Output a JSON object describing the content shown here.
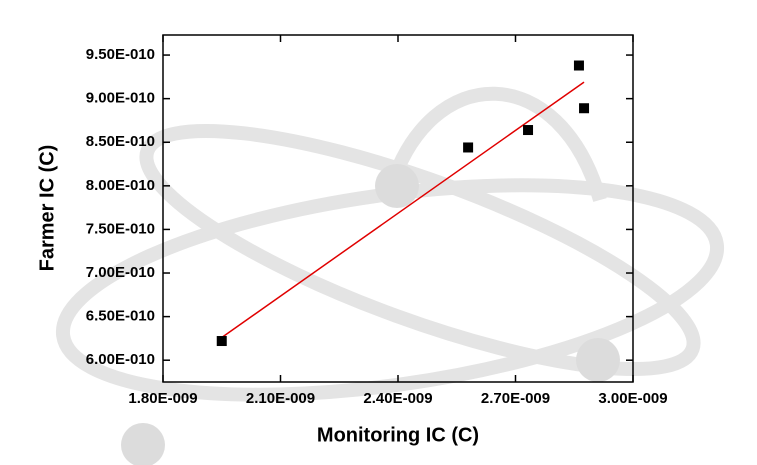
{
  "chart_data": {
    "type": "scatter",
    "x_label": "Monitoring IC (C)",
    "y_label": "Farmer IC (C)",
    "x": [
      1.95e-09,
      2.579e-09,
      2.732e-09,
      2.862e-09,
      2.875e-09
    ],
    "values": [
      6.22e-10,
      8.44e-10,
      8.64e-10,
      9.38e-10,
      8.89e-10
    ],
    "color": "#000000",
    "fit": {
      "x": [
        1.95e-09,
        2.875e-09
      ],
      "y": [
        6.26e-10,
        9.19e-10
      ],
      "color": "#e00000"
    },
    "xlim": [
      1.8e-09,
      3e-09
    ],
    "ylim": [
      5.75e-10,
      9.73e-10
    ],
    "xticks": [
      {
        "value": 1.8e-09,
        "label": "1.80E-009"
      },
      {
        "value": 2.1e-09,
        "label": "2.10E-009"
      },
      {
        "value": 2.4e-09,
        "label": "2.40E-009"
      },
      {
        "value": 2.7e-09,
        "label": "2.70E-009"
      },
      {
        "value": 3e-09,
        "label": "3.00E-009"
      }
    ],
    "yticks": [
      {
        "value": 6e-10,
        "label": "6.00E-010"
      },
      {
        "value": 6.5e-10,
        "label": "6.50E-010"
      },
      {
        "value": 7e-10,
        "label": "7.00E-010"
      },
      {
        "value": 7.5e-10,
        "label": "7.50E-010"
      },
      {
        "value": 8e-10,
        "label": "8.00E-010"
      },
      {
        "value": 8.5e-10,
        "label": "8.50E-010"
      },
      {
        "value": 9e-10,
        "label": "9.00E-010"
      },
      {
        "value": 9.5e-10,
        "label": "9.50E-010"
      }
    ]
  }
}
